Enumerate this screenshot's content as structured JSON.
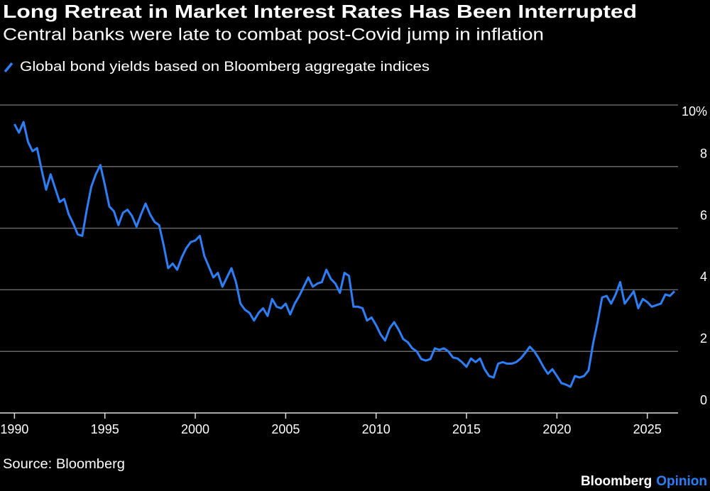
{
  "chart_data": {
    "type": "line",
    "title": "Long Retreat in Market Interest Rates Has Been Interrupted",
    "subtitle": "Central banks were late to combat post-Covid jump in inflation",
    "source": "Source: Bloomberg",
    "credit": [
      "Bloomberg",
      "Opinion"
    ],
    "x": [
      1990,
      1990.25,
      1990.5,
      1990.75,
      1991,
      1991.25,
      1991.5,
      1991.75,
      1992,
      1992.25,
      1992.5,
      1992.75,
      1993,
      1993.25,
      1993.5,
      1993.75,
      1994,
      1994.25,
      1994.5,
      1994.75,
      1995,
      1995.25,
      1995.5,
      1995.75,
      1996,
      1996.25,
      1996.5,
      1996.75,
      1997,
      1997.25,
      1997.5,
      1997.75,
      1998,
      1998.25,
      1998.5,
      1998.75,
      1999,
      1999.25,
      1999.5,
      1999.75,
      2000,
      2000.25,
      2000.5,
      2000.75,
      2001,
      2001.25,
      2001.5,
      2001.75,
      2002,
      2002.25,
      2002.5,
      2002.75,
      2003,
      2003.25,
      2003.5,
      2003.75,
      2004,
      2004.25,
      2004.5,
      2004.75,
      2005,
      2005.25,
      2005.5,
      2005.75,
      2006,
      2006.25,
      2006.5,
      2006.75,
      2007,
      2007.25,
      2007.5,
      2007.75,
      2008,
      2008.25,
      2008.5,
      2008.75,
      2009,
      2009.25,
      2009.5,
      2009.75,
      2010,
      2010.25,
      2010.5,
      2010.75,
      2011,
      2011.25,
      2011.5,
      2011.75,
      2012,
      2012.25,
      2012.5,
      2012.75,
      2013,
      2013.25,
      2013.5,
      2013.75,
      2014,
      2014.25,
      2014.5,
      2014.75,
      2015,
      2015.25,
      2015.5,
      2015.75,
      2016,
      2016.25,
      2016.5,
      2016.75,
      2017,
      2017.25,
      2017.5,
      2017.75,
      2018,
      2018.25,
      2018.5,
      2018.75,
      2019,
      2019.25,
      2019.5,
      2019.75,
      2020,
      2020.25,
      2020.5,
      2020.75,
      2021,
      2021.25,
      2021.5,
      2021.75,
      2022,
      2022.25,
      2022.5,
      2022.75,
      2023,
      2023.25,
      2023.5,
      2023.75,
      2024,
      2024.25,
      2024.5,
      2024.75,
      2025,
      2025.25,
      2025.5,
      2025.75,
      2026,
      2026.25,
      2026.5
    ],
    "series": [
      {
        "name": "Global bond yields based on Bloomberg aggregate indices",
        "color": "#2d7ff9",
        "values": [
          9.38,
          9.1,
          9.45,
          8.8,
          8.5,
          8.6,
          7.9,
          7.25,
          7.75,
          7.3,
          6.85,
          6.95,
          6.45,
          6.15,
          5.8,
          5.75,
          6.6,
          7.35,
          7.75,
          8.05,
          7.4,
          6.7,
          6.55,
          6.1,
          6.5,
          6.6,
          6.4,
          6.05,
          6.45,
          6.8,
          6.45,
          6.2,
          6.1,
          5.45,
          4.7,
          4.85,
          4.65,
          5.05,
          5.35,
          5.55,
          5.6,
          5.75,
          5.1,
          4.75,
          4.4,
          4.55,
          4.1,
          4.4,
          4.7,
          4.25,
          3.55,
          3.35,
          3.25,
          3.0,
          3.25,
          3.4,
          3.15,
          3.7,
          3.45,
          3.4,
          3.55,
          3.2,
          3.55,
          3.8,
          4.1,
          4.4,
          4.1,
          4.2,
          4.25,
          4.65,
          4.35,
          4.2,
          3.9,
          4.55,
          4.45,
          3.45,
          3.45,
          3.4,
          3.0,
          3.1,
          2.85,
          2.55,
          2.35,
          2.75,
          2.95,
          2.7,
          2.4,
          2.3,
          2.1,
          2.0,
          1.75,
          1.7,
          1.75,
          2.1,
          2.05,
          2.1,
          2.0,
          1.8,
          1.77,
          1.65,
          1.5,
          1.77,
          1.65,
          1.77,
          1.42,
          1.2,
          1.15,
          1.6,
          1.65,
          1.6,
          1.6,
          1.65,
          1.77,
          1.95,
          2.15,
          2.0,
          1.77,
          1.5,
          1.27,
          1.42,
          1.2,
          0.97,
          0.92,
          0.85,
          1.2,
          1.15,
          1.2,
          1.38,
          2.25,
          2.95,
          3.75,
          3.8,
          3.55,
          3.85,
          4.25,
          3.55,
          3.75,
          3.95,
          3.4,
          3.7,
          3.6,
          3.45,
          3.5,
          3.55,
          3.85,
          3.8,
          3.95
        ]
      }
    ],
    "xlim": [
      1989.2,
      2026.7
    ],
    "xticks": [
      1990,
      1995,
      2000,
      2005,
      2010,
      2015,
      2020,
      2025
    ],
    "ylim": [
      0,
      10
    ],
    "yticks": [
      0,
      2,
      4,
      6,
      8,
      {
        "value": 10,
        "label": "10%"
      }
    ],
    "grid": true
  }
}
